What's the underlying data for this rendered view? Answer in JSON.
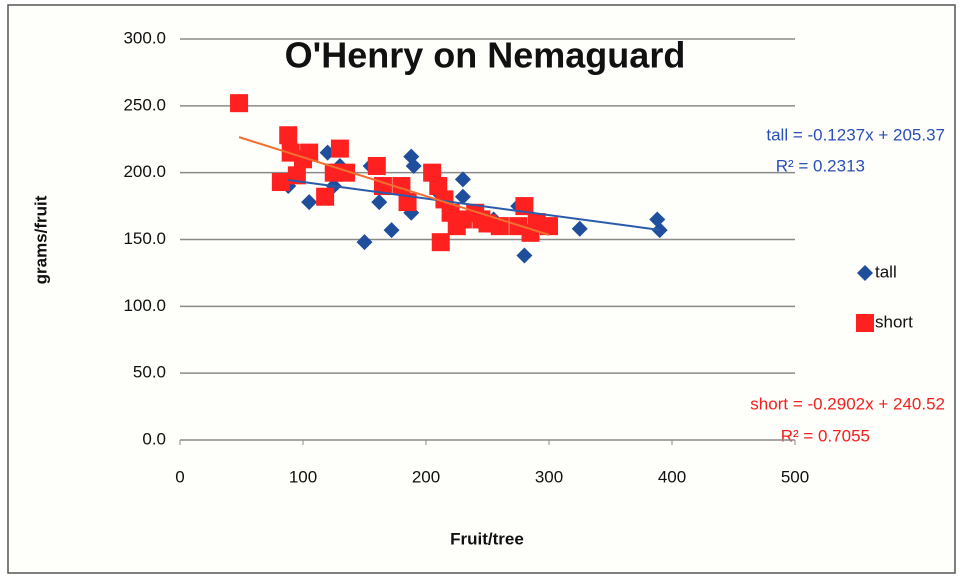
{
  "chart_data": {
    "type": "scatter",
    "title": "O'Henry on Nemaguard",
    "x_label": "Fruit/tree",
    "y_label": "grams/fruit",
    "xlim": [
      0,
      500
    ],
    "xticks": [
      0,
      100,
      200,
      300,
      400,
      500
    ],
    "ylim": [
      0,
      300
    ],
    "yticks": [
      {
        "value": 0,
        "label": "0.0"
      },
      {
        "value": 50,
        "label": "50.0"
      },
      {
        "value": 100,
        "label": "100.0"
      },
      {
        "value": 150,
        "label": "150.0"
      },
      {
        "value": 200,
        "label": "200.0"
      },
      {
        "value": 250,
        "label": "250.0"
      },
      {
        "value": 300,
        "label": "300.0"
      }
    ],
    "grid": true,
    "legend": "right",
    "series": [
      {
        "name": "tall",
        "color": "#1f4e9c",
        "marker": "diamond",
        "trendline_color": "#2a5bab",
        "trendline": {
          "slope": -0.1237,
          "intercept": 205.37
        },
        "x": [
          88,
          105,
          120,
          125,
          130,
          150,
          155,
          162,
          172,
          188,
          190,
          188,
          210,
          230,
          230,
          240,
          255,
          275,
          280,
          285,
          325,
          388,
          390
        ],
        "values": [
          190,
          178,
          215,
          190,
          205,
          148,
          205,
          178,
          157,
          212,
          205,
          170,
          185,
          195,
          182,
          168,
          165,
          175,
          138,
          155,
          158,
          165,
          157
        ]
      },
      {
        "name": "short",
        "color": "#ff2020",
        "marker": "square",
        "trendline_color": "#f07030",
        "trendline": {
          "slope": -0.2902,
          "intercept": 240.52
        },
        "x": [
          48,
          82,
          88,
          90,
          95,
          100,
          105,
          118,
          125,
          130,
          135,
          160,
          165,
          180,
          185,
          205,
          210,
          212,
          215,
          220,
          225,
          230,
          240,
          245,
          250,
          260,
          275,
          280,
          285,
          290,
          300
        ],
        "values": [
          252,
          193,
          228,
          215,
          198,
          210,
          215,
          182,
          200,
          218,
          200,
          205,
          190,
          190,
          178,
          200,
          190,
          148,
          180,
          170,
          160,
          165,
          170,
          165,
          162,
          160,
          160,
          175,
          155,
          163,
          160
        ]
      }
    ],
    "annotations": [
      "tall = -0.1237x + 205.37",
      "R² = 0.2313",
      "short = -0.2902x + 240.52",
      "R² = 0.7055"
    ]
  }
}
